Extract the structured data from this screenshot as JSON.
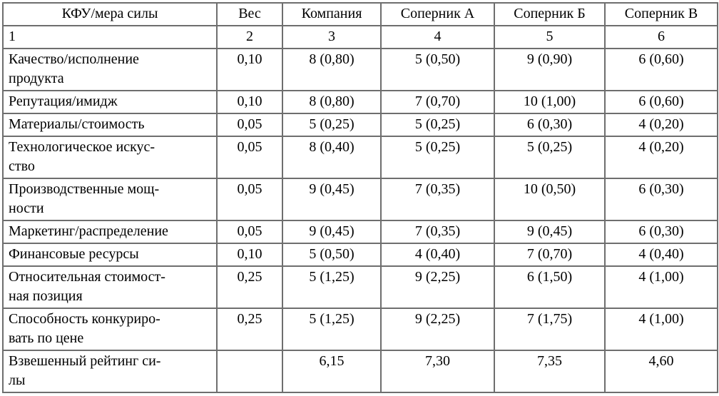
{
  "colors": {
    "background": "#ffffff",
    "border": "#6e6e6e",
    "text": "#000000"
  },
  "table": {
    "header": [
      "КФУ/мера силы",
      "Вес",
      "Компания",
      "Соперник А",
      "Соперник Б",
      "Соперник В"
    ],
    "index_row": [
      "1",
      "2",
      "3",
      "4",
      "5",
      "6"
    ],
    "rows": [
      {
        "factor": "Качество/исполнение\nпродукта",
        "weight": "0,10",
        "company": "8 (0,80)",
        "rival_a": "5 (0,50)",
        "rival_b": "9 (0,90)",
        "rival_v": "6 (0,60)"
      },
      {
        "factor": "Репутация/имидж",
        "weight": "0,10",
        "company": "8 (0,80)",
        "rival_a": "7 (0,70)",
        "rival_b": "10 (1,00)",
        "rival_v": "6 (0,60)"
      },
      {
        "factor": "Материалы/стоимость",
        "weight": "0,05",
        "company": "5 (0,25)",
        "rival_a": "5 (0,25)",
        "rival_b": "6 (0,30)",
        "rival_v": "4 (0,20)"
      },
      {
        "factor": "Технологическое искус-\nство",
        "weight": "0,05",
        "company": "8 (0,40)",
        "rival_a": "5 (0,25)",
        "rival_b": "5 (0,25)",
        "rival_v": "4 (0,20)"
      },
      {
        "factor": "Производственные мощ-\nности",
        "weight": "0,05",
        "company": "9 (0,45)",
        "rival_a": "7 (0,35)",
        "rival_b": "10 (0,50)",
        "rival_v": "6 (0,30)"
      },
      {
        "factor": "Маркетинг/распределение",
        "weight": "0,05",
        "company": "9 (0,45)",
        "rival_a": "7 (0,35)",
        "rival_b": "9 (0,45)",
        "rival_v": "6 (0,30)"
      },
      {
        "factor": "Финансовые ресурсы",
        "weight": "0,10",
        "company": "5 (0,50)",
        "rival_a": "4 (0,40)",
        "rival_b": "7 (0,70)",
        "rival_v": "4 (0,40)"
      },
      {
        "factor": "Относительная стоимост-\nная позиция",
        "weight": "0,25",
        "company": "5 (1,25)",
        "rival_a": "9 (2,25)",
        "rival_b": "6 (1,50)",
        "rival_v": "4 (1,00)"
      },
      {
        "factor": "Способность конкуриро-\nвать по цене",
        "weight": "0,25",
        "company": "5 (1,25)",
        "rival_a": "9 (2,25)",
        "rival_b": "7 (1,75)",
        "rival_v": "4 (1,00)"
      }
    ],
    "total_row": {
      "factor": "Взвешенный рейтинг си-\nлы",
      "weight": "",
      "company": "6,15",
      "rival_a": "7,30",
      "rival_b": "7,35",
      "rival_v": "4,60"
    }
  }
}
